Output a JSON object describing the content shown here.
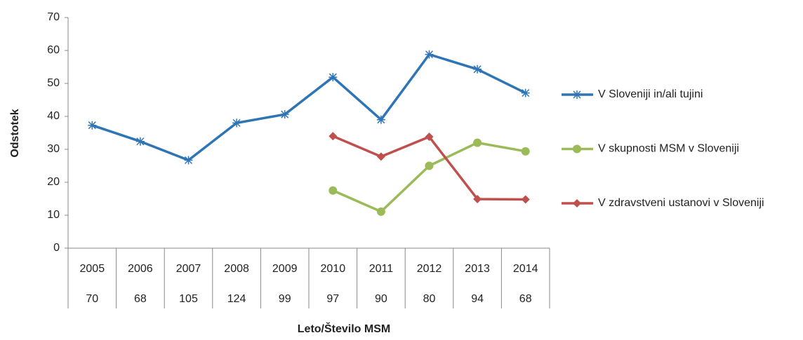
{
  "chart_data": {
    "type": "line",
    "x_label": "Leto/Število MSM",
    "y_label": "Odstotek",
    "categories": [
      "2005",
      "2006",
      "2007",
      "2008",
      "2009",
      "2010",
      "2011",
      "2012",
      "2013",
      "2014"
    ],
    "category_counts": [
      70,
      68,
      105,
      124,
      99,
      97,
      90,
      80,
      94,
      68
    ],
    "ylim": [
      0,
      70
    ],
    "yticks": [
      0,
      10,
      20,
      30,
      40,
      50,
      60,
      70
    ],
    "series": [
      {
        "name": "V Sloveniji in/ali tujini",
        "color": "#2e75b6",
        "marker": "asterisk",
        "values": [
          37.3,
          32.4,
          26.7,
          38,
          40.6,
          51.9,
          39,
          58.8,
          54.3,
          47.1
        ]
      },
      {
        "name": "V skupnosti MSM v Sloveniji",
        "color": "#9bbb59",
        "marker": "circle",
        "values": [
          null,
          null,
          null,
          null,
          null,
          17.5,
          11.1,
          25,
          32,
          29.4
        ]
      },
      {
        "name": "V zdravstveni ustanovi v Sloveniji",
        "color": "#c0504d",
        "marker": "diamond",
        "values": [
          null,
          null,
          null,
          null,
          null,
          34,
          27.8,
          33.8,
          14.9,
          14.8
        ]
      }
    ]
  }
}
